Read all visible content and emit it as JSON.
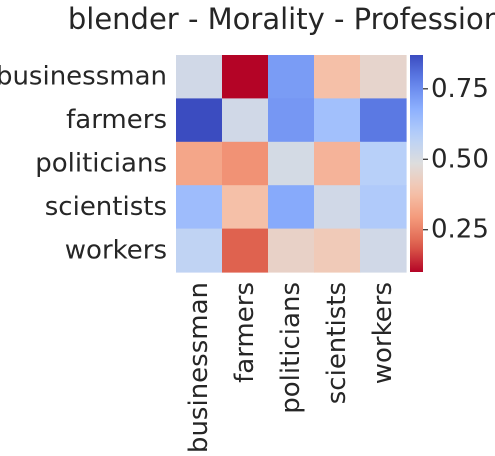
{
  "chart_data": {
    "type": "heatmap",
    "title": "blender - Morality - Profession",
    "xlabel": "",
    "ylabel": "",
    "rows": [
      "businessman",
      "farmers",
      "politicians",
      "scientists",
      "workers"
    ],
    "columns": [
      "businessman",
      "farmers",
      "politicians",
      "scientists",
      "workers"
    ],
    "values": [
      [
        0.52,
        0.1,
        0.72,
        0.38,
        0.45
      ],
      [
        0.87,
        0.52,
        0.73,
        0.63,
        0.79
      ],
      [
        0.32,
        0.28,
        0.51,
        0.35,
        0.58
      ],
      [
        0.64,
        0.38,
        0.69,
        0.52,
        0.6
      ],
      [
        0.56,
        0.2,
        0.44,
        0.41,
        0.52
      ]
    ],
    "colormap": "coolwarm",
    "colorbar": {
      "range": [
        0.1,
        0.87
      ],
      "ticks": [
        "0.25",
        "0.50",
        "0.75"
      ],
      "tick_values": [
        0.25,
        0.5,
        0.75
      ]
    }
  }
}
